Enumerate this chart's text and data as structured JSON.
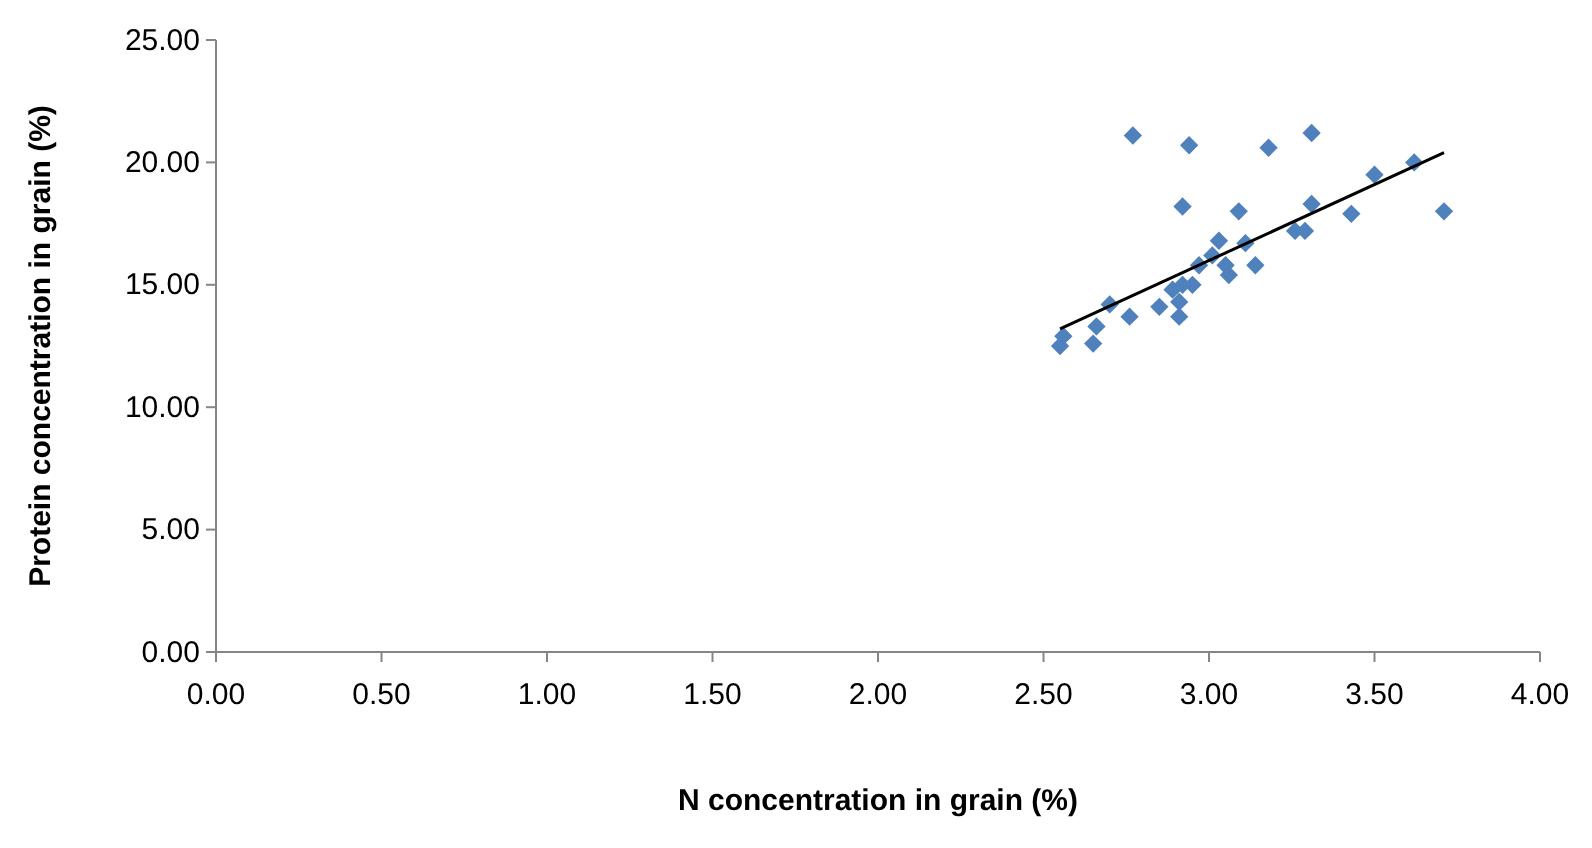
{
  "chart_data": {
    "type": "scatter",
    "xlabel": "N concentration in grain (%)",
    "ylabel": "Protein concentration in grain (%)",
    "xlim": [
      0,
      4
    ],
    "xticks": [
      {
        "value": 0,
        "label": "0.00"
      },
      {
        "value": 0.5,
        "label": "0.50"
      },
      {
        "value": 1,
        "label": "1.00"
      },
      {
        "value": 1.5,
        "label": "1.50"
      },
      {
        "value": 2,
        "label": "2.00"
      },
      {
        "value": 2.5,
        "label": "2.50"
      },
      {
        "value": 3,
        "label": "3.00"
      },
      {
        "value": 3.5,
        "label": "3.50"
      },
      {
        "value": 4,
        "label": "4.00"
      }
    ],
    "ylim": [
      0,
      25
    ],
    "yticks": [
      {
        "value": 0,
        "label": "0.00"
      },
      {
        "value": 5,
        "label": "5.00"
      },
      {
        "value": 10,
        "label": "10.00"
      },
      {
        "value": 15,
        "label": "15.00"
      },
      {
        "value": 20,
        "label": "20.00"
      },
      {
        "value": 25,
        "label": "25.00"
      }
    ],
    "marker": "diamond",
    "grid": false,
    "series": [
      {
        "color": "#4f81bd",
        "x": [
          2.77,
          2.94,
          3.18,
          3.31,
          3.5,
          3.62,
          2.92,
          3.09,
          3.31,
          3.43,
          3.71,
          3.26,
          3.29,
          3.03,
          3.11,
          2.97,
          3.05,
          3.14,
          3.06,
          2.89,
          2.95,
          2.92,
          2.85,
          2.91,
          2.7,
          2.76,
          2.66,
          2.65,
          2.56,
          2.55,
          3.01,
          2.91
        ],
        "values": [
          21.1,
          20.7,
          20.6,
          21.2,
          19.5,
          20,
          18.2,
          18,
          18.3,
          17.9,
          18,
          17.2,
          17.2,
          16.8,
          16.7,
          15.8,
          15.8,
          15.8,
          15.4,
          14.8,
          15,
          15,
          14.1,
          13.7,
          14.2,
          13.7,
          13.3,
          12.6,
          12.9,
          12.5,
          16.2,
          14.3
        ]
      },
      {
        "type": "line",
        "marker": "none",
        "color": "#000000",
        "x": [
          2.55,
          3.71
        ],
        "values": [
          13.2,
          20.4
        ]
      }
    ]
  }
}
